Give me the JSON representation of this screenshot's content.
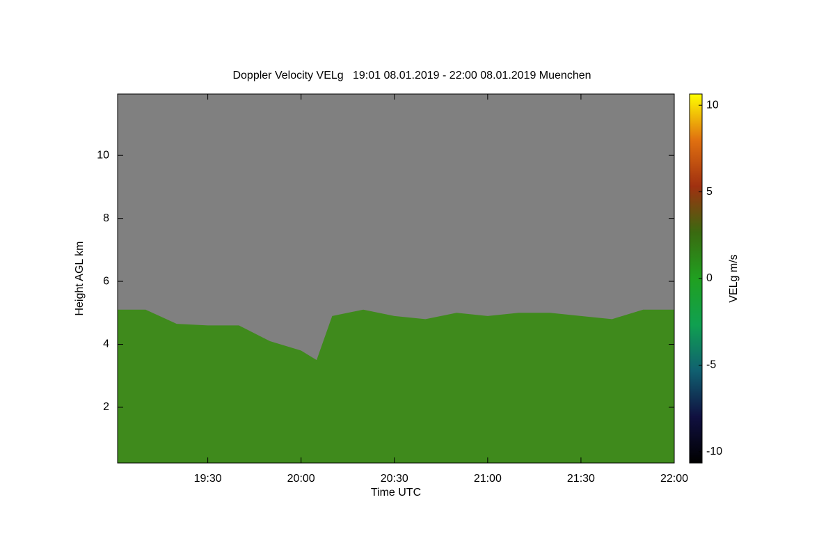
{
  "chart_data": {
    "type": "area",
    "title": "Doppler Velocity VELg   19:01 08.01.2019 - 22:00 08.01.2019 Muenchen",
    "x_label": "Time UTC",
    "y_label": "Height AGL km",
    "x": [
      1141,
      1150,
      1160,
      1170,
      1180,
      1190,
      1200,
      1205,
      1210,
      1220,
      1230,
      1240,
      1250,
      1260,
      1270,
      1280,
      1290,
      1300,
      1310,
      1320
    ],
    "values": [
      5.1,
      5.1,
      4.65,
      4.6,
      4.6,
      4.1,
      3.8,
      3.5,
      4.9,
      5.1,
      4.9,
      4.8,
      5.0,
      4.9,
      5.0,
      5.0,
      4.9,
      4.8,
      5.1,
      5.1
    ],
    "color": "#3f8a1c",
    "background": "#808080",
    "xlim": [
      1141,
      1320
    ],
    "xticks": [
      {
        "value": 1170,
        "label": "19:30"
      },
      {
        "value": 1200,
        "label": "20:00"
      },
      {
        "value": 1230,
        "label": "20:30"
      },
      {
        "value": 1260,
        "label": "21:00"
      },
      {
        "value": 1290,
        "label": "21:30"
      },
      {
        "value": 1320,
        "label": "22:00"
      }
    ],
    "ylim": [
      0.23,
      11.95
    ],
    "yticks": [
      2,
      4,
      6,
      8,
      10
    ],
    "colorbar": {
      "label": "VELg m/s",
      "lim": [
        -10.65,
        10.65
      ],
      "ticks": [
        -10,
        -5,
        0,
        5,
        10
      ],
      "colormap": [
        "#000000",
        "#101040",
        "#106070",
        "#10a050",
        "#20a020",
        "#3a6a10",
        "#a03010",
        "#e07010",
        "#ffff00"
      ]
    }
  }
}
